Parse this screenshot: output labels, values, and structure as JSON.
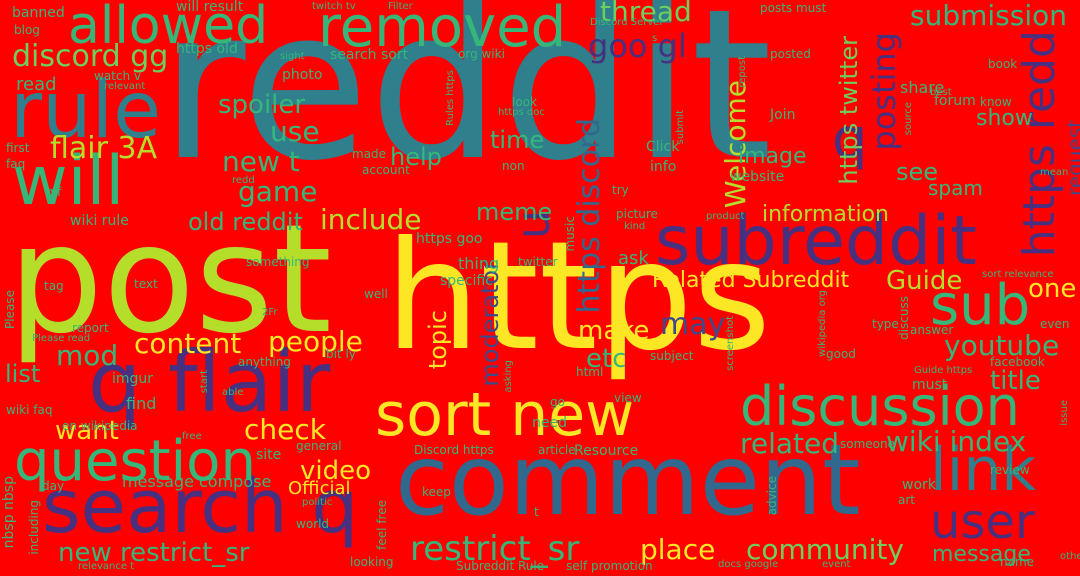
{
  "background_color": "#ff0000",
  "palette": {
    "teal": "#2f7f8c",
    "yellow": "#fde725",
    "lime": "#b5de2b",
    "purple": "#46307f",
    "green": "#35b779",
    "mint": "#6ccf5f",
    "blue": "#31688e",
    "indigo": "#3e4a89",
    "dark": "#440154"
  },
  "words": [
    {
      "text": "reddit",
      "color": "#2f7f8c"
    },
    {
      "text": "post",
      "color": "#b5de2b"
    },
    {
      "text": "https",
      "color": "#fde725"
    },
    {
      "text": "comment",
      "color": "#31688e"
    },
    {
      "text": "subreddit",
      "color": "#46307f"
    },
    {
      "text": "q flair",
      "color": "#46307f"
    },
    {
      "text": "search q",
      "color": "#46307f"
    },
    {
      "text": "sort new",
      "color": "#fde725"
    },
    {
      "text": "rule",
      "color": "#2f7f8c"
    },
    {
      "text": "will",
      "color": "#35b779"
    },
    {
      "text": "removed",
      "color": "#35b779"
    },
    {
      "text": "allowed",
      "color": "#35b779"
    },
    {
      "text": "question",
      "color": "#35b779"
    },
    {
      "text": "discussion",
      "color": "#35b779"
    },
    {
      "text": "link",
      "color": "#2f7f8c"
    },
    {
      "text": "user",
      "color": "#46307f"
    },
    {
      "text": "sub",
      "color": "#35b779"
    },
    {
      "text": "q",
      "color": "#46307f"
    },
    {
      "text": "https redd",
      "color": "#46307f"
    },
    {
      "text": "thread",
      "color": "#6ccf5f"
    },
    {
      "text": "submission",
      "color": "#35b779"
    },
    {
      "text": "discord gg",
      "color": "#6ccf5f"
    },
    {
      "text": "goo gl",
      "color": "#46307f"
    },
    {
      "text": "Welcome",
      "color": "#b5de2b"
    },
    {
      "text": "posting",
      "color": "#46307f"
    },
    {
      "text": "https twitter",
      "color": "#6ccf5f"
    },
    {
      "text": "request",
      "color": "#3e4a89"
    },
    {
      "text": "https discord",
      "color": "#31688e"
    },
    {
      "text": "u",
      "color": "#46307f"
    },
    {
      "text": "use",
      "color": "#35b779"
    },
    {
      "text": "spoiler",
      "color": "#35b779"
    },
    {
      "text": "flair 3A",
      "color": "#b5de2b"
    },
    {
      "text": "new t",
      "color": "#35b779"
    },
    {
      "text": "game",
      "color": "#35b779"
    },
    {
      "text": "old reddit",
      "color": "#35b779"
    },
    {
      "text": "include",
      "color": "#b5de2b"
    },
    {
      "text": "meme",
      "color": "#35b779"
    },
    {
      "text": "information",
      "color": "#b5de2b"
    },
    {
      "text": "image",
      "color": "#35b779"
    },
    {
      "text": "see",
      "color": "#35b779"
    },
    {
      "text": "spam",
      "color": "#35b779"
    },
    {
      "text": "show",
      "color": "#35b779"
    },
    {
      "text": "help",
      "color": "#35b779"
    },
    {
      "text": "time",
      "color": "#35b779"
    },
    {
      "text": "Related Subreddit",
      "color": "#fde725"
    },
    {
      "text": "Guide",
      "color": "#b5de2b"
    },
    {
      "text": "one",
      "color": "#fde725"
    },
    {
      "text": "may",
      "color": "#3e4a89"
    },
    {
      "text": "content",
      "color": "#fde725"
    },
    {
      "text": "people",
      "color": "#fde725"
    },
    {
      "text": "mod",
      "color": "#35b779"
    },
    {
      "text": "topic",
      "color": "#fde725"
    },
    {
      "text": "moderator",
      "color": "#3e4a89"
    },
    {
      "text": "make",
      "color": "#fde725"
    },
    {
      "text": "etc",
      "color": "#35b779"
    },
    {
      "text": "youtube",
      "color": "#35b779"
    },
    {
      "text": "title",
      "color": "#35b779"
    },
    {
      "text": "list",
      "color": "#35b779"
    },
    {
      "text": "want",
      "color": "#fde725"
    },
    {
      "text": "check",
      "color": "#fde725"
    },
    {
      "text": "related",
      "color": "#35b779"
    },
    {
      "text": "wiki index",
      "color": "#35b779"
    },
    {
      "text": "video",
      "color": "#fde725"
    },
    {
      "text": "restrict_sr",
      "color": "#35b779"
    },
    {
      "text": "new restrict_sr",
      "color": "#35b779"
    },
    {
      "text": "place",
      "color": "#fde725"
    },
    {
      "text": "community",
      "color": "#6ccf5f"
    },
    {
      "text": "message",
      "color": "#35b779"
    },
    {
      "text": "Official",
      "color": "#fde725"
    },
    {
      "text": "message compose",
      "color": "#35b779"
    },
    {
      "text": "find",
      "color": "#35b779"
    },
    {
      "text": "imgur",
      "color": "#35b779"
    },
    {
      "text": "thing",
      "color": "#35b779"
    },
    {
      "text": "ask",
      "color": "#35b779"
    },
    {
      "text": "https goo",
      "color": "#35b779"
    },
    {
      "text": "wiki rule",
      "color": "#35b779"
    },
    {
      "text": "read",
      "color": "#35b779"
    },
    {
      "text": "banned",
      "color": "#35b779"
    },
    {
      "text": "blog",
      "color": "#35b779"
    },
    {
      "text": "will result",
      "color": "#35b779"
    },
    {
      "text": "https old",
      "color": "#35b779"
    },
    {
      "text": "search sort",
      "color": "#35b779"
    },
    {
      "text": "org wiki",
      "color": "#35b779"
    },
    {
      "text": "share",
      "color": "#35b779"
    },
    {
      "text": "forum",
      "color": "#35b779"
    },
    {
      "text": "posted",
      "color": "#35b779"
    },
    {
      "text": "posts must",
      "color": "#35b779"
    },
    {
      "text": "Discord Server",
      "color": "#35b779"
    },
    {
      "text": "book",
      "color": "#35b779"
    },
    {
      "text": "photo",
      "color": "#35b779"
    },
    {
      "text": "watch v",
      "color": "#35b779"
    },
    {
      "text": "relevant",
      "color": "#35b779"
    },
    {
      "text": "look",
      "color": "#35b779"
    },
    {
      "text": "Join",
      "color": "#35b779"
    },
    {
      "text": "know",
      "color": "#35b779"
    },
    {
      "text": "best",
      "color": "#35b779"
    },
    {
      "text": "source",
      "color": "#35b779"
    },
    {
      "text": "made",
      "color": "#35b779"
    },
    {
      "text": "account",
      "color": "#35b779"
    },
    {
      "text": "non",
      "color": "#35b779"
    },
    {
      "text": "info",
      "color": "#35b779"
    },
    {
      "text": "website",
      "color": "#35b779"
    },
    {
      "text": "Click",
      "color": "#35b779"
    },
    {
      "text": "try",
      "color": "#35b779"
    },
    {
      "text": "first",
      "color": "#35b779"
    },
    {
      "text": "faq",
      "color": "#35b779"
    },
    {
      "text": "gif",
      "color": "#35b779"
    },
    {
      "text": "tag",
      "color": "#35b779"
    },
    {
      "text": "text",
      "color": "#35b779"
    },
    {
      "text": "redd",
      "color": "#35b779"
    },
    {
      "text": "something",
      "color": "#35b779"
    },
    {
      "text": "well",
      "color": "#35b779"
    },
    {
      "text": "specific",
      "color": "#35b779"
    },
    {
      "text": "twitter",
      "color": "#35b779"
    },
    {
      "text": "music",
      "color": "#35b779"
    },
    {
      "text": "picture",
      "color": "#35b779"
    },
    {
      "text": "kind",
      "color": "#35b779"
    },
    {
      "text": "product",
      "color": "#35b779"
    },
    {
      "text": "sort relevance",
      "color": "#35b779"
    },
    {
      "text": "even",
      "color": "#35b779"
    },
    {
      "text": "type",
      "color": "#35b779"
    },
    {
      "text": "answer",
      "color": "#35b779"
    },
    {
      "text": "report",
      "color": "#35b779"
    },
    {
      "text": "Please read",
      "color": "#35b779"
    },
    {
      "text": "Please",
      "color": "#35b779"
    },
    {
      "text": "anything",
      "color": "#35b779"
    },
    {
      "text": "bit ly",
      "color": "#35b779"
    },
    {
      "text": "2Fr",
      "color": "#35b779"
    },
    {
      "text": "html",
      "color": "#35b779"
    },
    {
      "text": "subject",
      "color": "#35b779"
    },
    {
      "text": "good",
      "color": "#35b779"
    },
    {
      "text": "wikipedia org",
      "color": "#35b779"
    },
    {
      "text": "Guide https",
      "color": "#35b779"
    },
    {
      "text": "facebook",
      "color": "#35b779"
    },
    {
      "text": "must",
      "color": "#35b779"
    },
    {
      "text": "wiki faq",
      "color": "#35b779"
    },
    {
      "text": "en wikipedia",
      "color": "#35b779"
    },
    {
      "text": "free",
      "color": "#35b779"
    },
    {
      "text": "site",
      "color": "#35b779"
    },
    {
      "text": "general",
      "color": "#35b779"
    },
    {
      "text": "go",
      "color": "#35b779"
    },
    {
      "text": "need",
      "color": "#35b779"
    },
    {
      "text": "view",
      "color": "#35b779"
    },
    {
      "text": "Discord https",
      "color": "#35b779"
    },
    {
      "text": "article",
      "color": "#35b779"
    },
    {
      "text": "Resource",
      "color": "#35b779"
    },
    {
      "text": "someone",
      "color": "#35b779"
    },
    {
      "text": "review",
      "color": "#35b779"
    },
    {
      "text": "art",
      "color": "#35b779"
    },
    {
      "text": "day",
      "color": "#35b779"
    },
    {
      "text": "work",
      "color": "#35b779"
    },
    {
      "text": "advice",
      "color": "#35b779"
    },
    {
      "text": "keep",
      "color": "#35b779"
    },
    {
      "text": "politic",
      "color": "#35b779"
    },
    {
      "text": "world",
      "color": "#35b779"
    },
    {
      "text": "nbsp nbsp",
      "color": "#35b779"
    },
    {
      "text": "including",
      "color": "#35b779"
    },
    {
      "text": "feel free",
      "color": "#35b779"
    },
    {
      "text": "looking",
      "color": "#35b779"
    },
    {
      "text": "Subreddit Rule",
      "color": "#35b779"
    },
    {
      "text": "self promotion",
      "color": "#35b779"
    },
    {
      "text": "docs google",
      "color": "#35b779"
    },
    {
      "text": "event",
      "color": "#35b779"
    },
    {
      "text": "name",
      "color": "#35b779"
    },
    {
      "text": "others",
      "color": "#35b779"
    },
    {
      "text": "relevance t",
      "color": "#35b779"
    },
    {
      "text": "t",
      "color": "#35b779"
    },
    {
      "text": "twitch tv",
      "color": "#35b779"
    },
    {
      "text": "Filter",
      "color": "#35b779"
    },
    {
      "text": "sight",
      "color": "#35b779"
    },
    {
      "text": "repost",
      "color": "#35b779"
    },
    {
      "text": "submit",
      "color": "#35b779"
    },
    {
      "text": "Rules https",
      "color": "#35b779"
    },
    {
      "text": "https doc",
      "color": "#35b779"
    },
    {
      "text": "mean",
      "color": "#35b779"
    },
    {
      "text": "screenshot",
      "color": "#35b779"
    },
    {
      "text": "discuss",
      "color": "#35b779"
    },
    {
      "text": "issue",
      "color": "#35b779"
    },
    {
      "text": "asking",
      "color": "#35b779"
    },
    {
      "text": "start",
      "color": "#35b779"
    },
    {
      "text": "able",
      "color": "#35b779"
    },
    {
      "text": "s",
      "color": "#35b779"
    }
  ]
}
